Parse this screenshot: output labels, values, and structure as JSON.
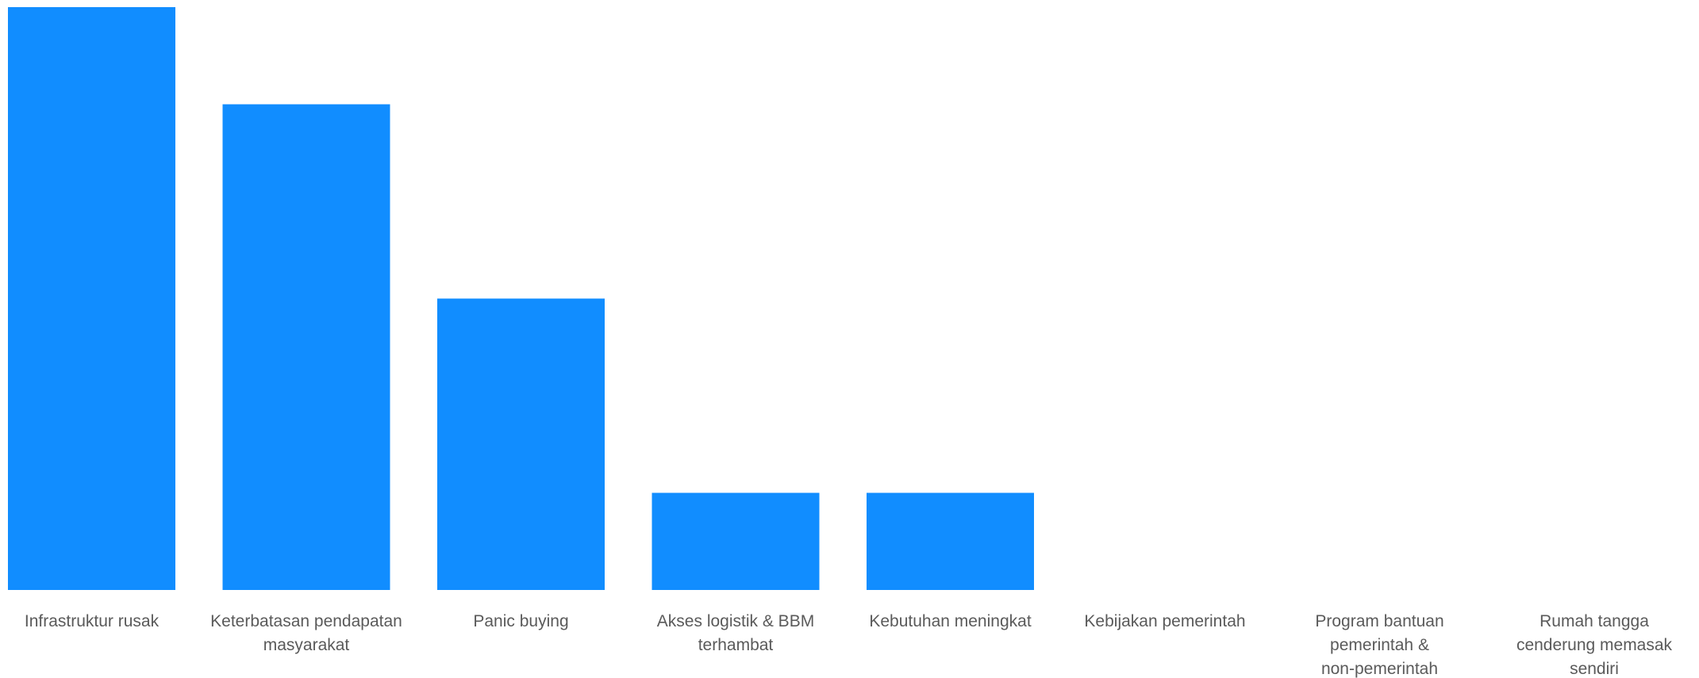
{
  "chart_data": {
    "type": "bar",
    "categories": [
      [
        "Infrastruktur rusak"
      ],
      [
        "Keterbatasan pendapatan",
        "masyarakat"
      ],
      [
        "Panic buying"
      ],
      [
        "Akses logistik & BBM",
        "terhambat"
      ],
      [
        "Kebutuhan meningkat"
      ],
      [
        "Kebijakan pemerintah"
      ],
      [
        "Program bantuan",
        "pemerintah &",
        "non-pemerintah"
      ],
      [
        "Rumah tangga",
        "cenderung memasak",
        "sendiri"
      ]
    ],
    "values": [
      6,
      5,
      3,
      1,
      1,
      0,
      0,
      0
    ],
    "ylim": [
      0,
      6
    ],
    "title": "",
    "xlabel": "",
    "ylabel": "",
    "grid": false,
    "legend": "none",
    "colors": {
      "bar": "#118DFF",
      "label": "#5a5a5a"
    }
  }
}
